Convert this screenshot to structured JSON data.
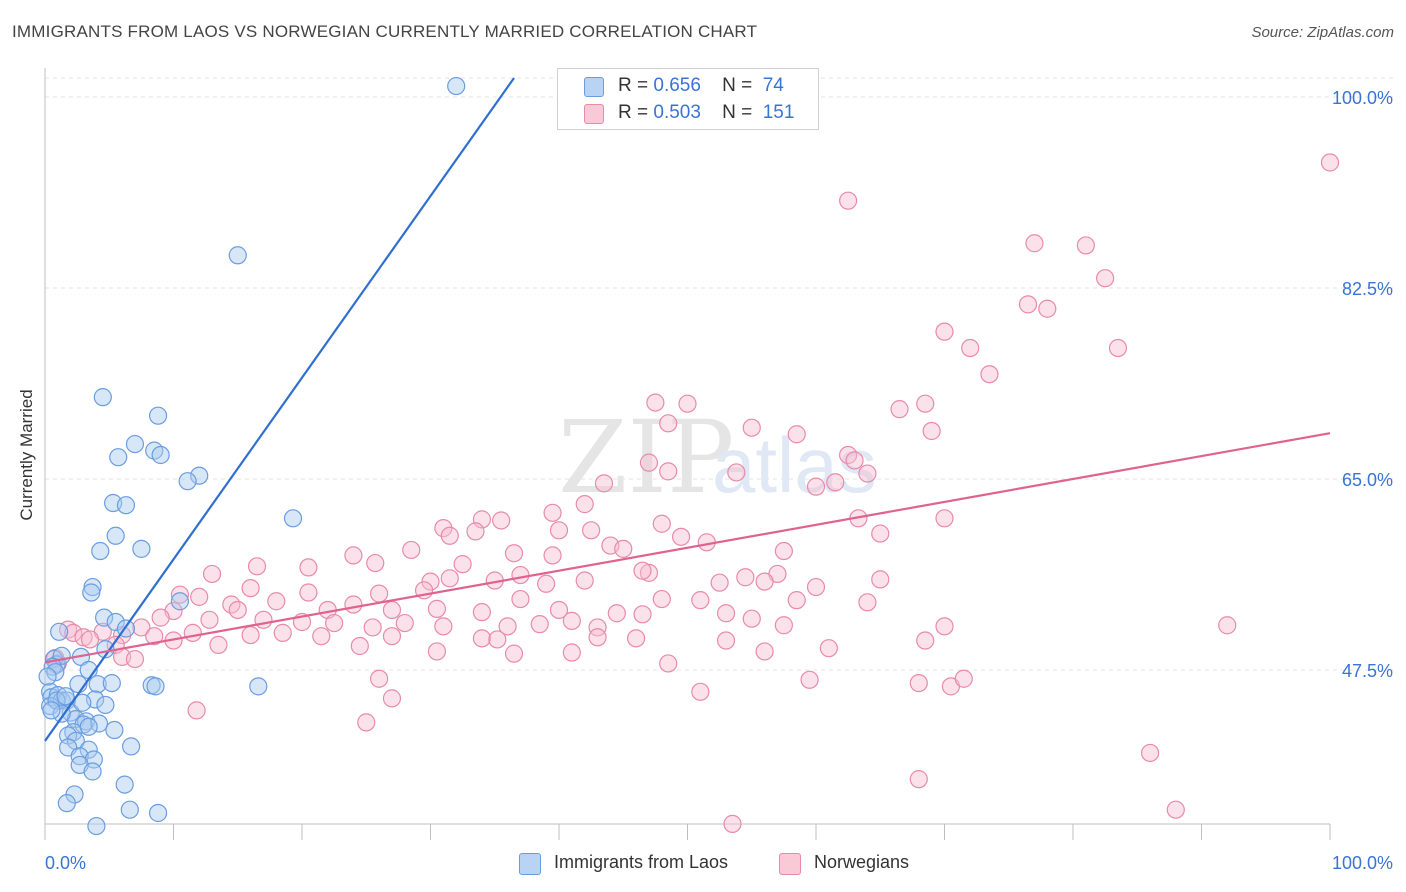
{
  "title": "IMMIGRANTS FROM LAOS VS NORWEGIAN CURRENTLY MARRIED CORRELATION CHART",
  "source": "Source: ZipAtlas.com",
  "watermark": {
    "zip": "ZIP",
    "atlas": "atlas"
  },
  "colors": {
    "blue_fill": "#a9c9f0",
    "blue_stroke": "#6a9de0",
    "blue_line": "#2f6fcf",
    "pink_fill": "#f7bdd0",
    "pink_stroke": "#e98aab",
    "pink_line": "#e0628f",
    "tick_label": "#3a73d6",
    "grid": "#e3e3e3"
  },
  "legend": {
    "rows": [
      {
        "r_label": "R =",
        "r_value": "0.656",
        "n_label": "N =",
        "n_value": "74"
      },
      {
        "r_label": "R =",
        "r_value": "0.503",
        "n_label": "N =",
        "n_value": "151"
      }
    ]
  },
  "bottom_legend": {
    "series1": "Immigrants from Laos",
    "series2": "Norwegians"
  },
  "chart_data": {
    "type": "scatter",
    "title": "IMMIGRANTS FROM LAOS VS NORWEGIAN CURRENTLY MARRIED CORRELATION CHART",
    "xlabel": "",
    "ylabel": "Currently Married",
    "xlim": [
      0,
      100
    ],
    "ylim": [
      32.5,
      102
    ],
    "x_tick_labels": [
      "0.0%",
      "100.0%"
    ],
    "y_ticks": [
      47.5,
      65.0,
      82.5,
      100.0
    ],
    "y_tick_labels": [
      "47.5%",
      "65.0%",
      "82.5%",
      "100.0%"
    ],
    "grid": true,
    "series": [
      {
        "name": "Immigrants from Laos",
        "r": 0.656,
        "n": 74,
        "trend": {
          "x0": 0,
          "y0": 41.0,
          "x1": 36.5,
          "y1": 102.0
        },
        "points": [
          [
            32.0,
            101.0
          ],
          [
            15.0,
            85.5
          ],
          [
            4.5,
            72.5
          ],
          [
            8.8,
            70.8
          ],
          [
            7.0,
            68.2
          ],
          [
            8.5,
            67.6
          ],
          [
            5.7,
            67.0
          ],
          [
            9.0,
            67.2
          ],
          [
            12.0,
            65.3
          ],
          [
            11.1,
            64.8
          ],
          [
            19.3,
            61.4
          ],
          [
            5.3,
            62.8
          ],
          [
            6.3,
            62.6
          ],
          [
            5.5,
            59.8
          ],
          [
            7.5,
            58.6
          ],
          [
            4.3,
            58.4
          ],
          [
            3.7,
            55.1
          ],
          [
            3.6,
            54.6
          ],
          [
            10.5,
            53.8
          ],
          [
            4.6,
            52.3
          ],
          [
            5.5,
            51.9
          ],
          [
            6.3,
            51.3
          ],
          [
            1.1,
            51.0
          ],
          [
            4.7,
            49.4
          ],
          [
            0.7,
            48.5
          ],
          [
            0.9,
            48.0
          ],
          [
            1.3,
            48.8
          ],
          [
            2.8,
            48.7
          ],
          [
            0.6,
            47.8
          ],
          [
            0.8,
            47.3
          ],
          [
            3.4,
            47.5
          ],
          [
            4.1,
            46.2
          ],
          [
            5.2,
            46.3
          ],
          [
            8.3,
            46.1
          ],
          [
            8.6,
            46.0
          ],
          [
            16.6,
            46.0
          ],
          [
            2.6,
            46.2
          ],
          [
            0.4,
            45.5
          ],
          [
            0.5,
            45.0
          ],
          [
            1.0,
            45.2
          ],
          [
            1.3,
            44.7
          ],
          [
            1.7,
            44.7
          ],
          [
            0.4,
            44.2
          ],
          [
            0.9,
            44.7
          ],
          [
            3.9,
            44.8
          ],
          [
            4.7,
            44.3
          ],
          [
            2.0,
            43.6
          ],
          [
            2.4,
            43.0
          ],
          [
            3.2,
            42.8
          ],
          [
            4.2,
            42.6
          ],
          [
            1.3,
            43.5
          ],
          [
            3.0,
            42.5
          ],
          [
            3.4,
            42.3
          ],
          [
            2.2,
            41.8
          ],
          [
            5.4,
            42.0
          ],
          [
            1.8,
            41.5
          ],
          [
            2.4,
            41.0
          ],
          [
            1.8,
            40.4
          ],
          [
            3.4,
            40.2
          ],
          [
            6.7,
            40.5
          ],
          [
            2.7,
            39.6
          ],
          [
            3.8,
            39.3
          ],
          [
            2.7,
            38.8
          ],
          [
            3.7,
            38.2
          ],
          [
            6.2,
            37.0
          ],
          [
            2.3,
            36.1
          ],
          [
            1.7,
            35.3
          ],
          [
            6.6,
            34.7
          ],
          [
            8.8,
            34.4
          ],
          [
            4.0,
            33.2
          ],
          [
            0.5,
            43.8
          ],
          [
            1.6,
            45.1
          ],
          [
            2.9,
            44.5
          ],
          [
            0.2,
            46.9
          ]
        ]
      },
      {
        "name": "Norwegians",
        "r": 0.503,
        "n": 151,
        "trend": {
          "x0": 0,
          "y0": 48.2,
          "x1": 100,
          "y1": 69.2
        },
        "points": [
          [
            100.0,
            94.0
          ],
          [
            62.5,
            90.5
          ],
          [
            77.0,
            86.6
          ],
          [
            81.0,
            86.4
          ],
          [
            82.5,
            83.4
          ],
          [
            76.5,
            81.0
          ],
          [
            78.0,
            80.6
          ],
          [
            70.0,
            78.5
          ],
          [
            83.5,
            77.0
          ],
          [
            72.0,
            77.0
          ],
          [
            73.5,
            74.6
          ],
          [
            47.5,
            72.0
          ],
          [
            50.0,
            71.9
          ],
          [
            68.5,
            71.9
          ],
          [
            66.5,
            71.4
          ],
          [
            48.5,
            70.1
          ],
          [
            55.0,
            69.7
          ],
          [
            69.0,
            69.4
          ],
          [
            58.5,
            69.1
          ],
          [
            62.5,
            67.2
          ],
          [
            47.0,
            66.5
          ],
          [
            63.0,
            66.7
          ],
          [
            48.5,
            65.7
          ],
          [
            53.8,
            65.6
          ],
          [
            64.0,
            65.5
          ],
          [
            60.0,
            64.3
          ],
          [
            61.5,
            64.7
          ],
          [
            43.5,
            64.6
          ],
          [
            42.0,
            62.7
          ],
          [
            39.5,
            61.9
          ],
          [
            40.0,
            60.3
          ],
          [
            48.0,
            60.9
          ],
          [
            70.0,
            61.4
          ],
          [
            63.3,
            61.4
          ],
          [
            34.0,
            61.3
          ],
          [
            35.5,
            61.2
          ],
          [
            31.0,
            60.5
          ],
          [
            42.5,
            60.3
          ],
          [
            33.5,
            60.2
          ],
          [
            31.5,
            59.8
          ],
          [
            65.0,
            60.0
          ],
          [
            49.5,
            59.7
          ],
          [
            44.0,
            58.9
          ],
          [
            51.5,
            59.2
          ],
          [
            28.5,
            58.5
          ],
          [
            45.0,
            58.6
          ],
          [
            36.5,
            58.2
          ],
          [
            57.5,
            58.4
          ],
          [
            24.0,
            58.0
          ],
          [
            39.5,
            58.0
          ],
          [
            32.5,
            57.2
          ],
          [
            16.5,
            57.0
          ],
          [
            20.5,
            56.9
          ],
          [
            13.0,
            56.3
          ],
          [
            25.7,
            57.3
          ],
          [
            47.0,
            56.4
          ],
          [
            46.5,
            56.6
          ],
          [
            57.0,
            56.3
          ],
          [
            54.5,
            56.0
          ],
          [
            37.0,
            56.2
          ],
          [
            31.5,
            55.9
          ],
          [
            30.0,
            55.6
          ],
          [
            39.0,
            55.4
          ],
          [
            35.0,
            55.7
          ],
          [
            42.0,
            55.7
          ],
          [
            65.0,
            55.8
          ],
          [
            52.5,
            55.5
          ],
          [
            56.0,
            55.6
          ],
          [
            60.0,
            55.1
          ],
          [
            29.5,
            54.8
          ],
          [
            16.0,
            55.0
          ],
          [
            20.5,
            54.6
          ],
          [
            10.5,
            54.4
          ],
          [
            12.0,
            54.2
          ],
          [
            26.0,
            54.5
          ],
          [
            37.0,
            54.0
          ],
          [
            48.0,
            54.0
          ],
          [
            51.0,
            53.9
          ],
          [
            58.5,
            53.9
          ],
          [
            64.0,
            53.7
          ],
          [
            18.0,
            53.8
          ],
          [
            14.5,
            53.5
          ],
          [
            24.0,
            53.5
          ],
          [
            15.0,
            53.0
          ],
          [
            10.0,
            52.9
          ],
          [
            22.0,
            53.0
          ],
          [
            27.0,
            53.0
          ],
          [
            30.5,
            53.1
          ],
          [
            40.0,
            53.0
          ],
          [
            44.5,
            52.7
          ],
          [
            46.5,
            52.6
          ],
          [
            34.0,
            52.8
          ],
          [
            41.0,
            52.0
          ],
          [
            53.0,
            52.7
          ],
          [
            55.0,
            52.2
          ],
          [
            9.0,
            52.3
          ],
          [
            12.8,
            52.1
          ],
          [
            17.0,
            52.1
          ],
          [
            20.0,
            51.9
          ],
          [
            22.5,
            51.8
          ],
          [
            25.5,
            51.4
          ],
          [
            28.0,
            51.8
          ],
          [
            31.0,
            51.5
          ],
          [
            36.0,
            51.5
          ],
          [
            38.5,
            51.7
          ],
          [
            43.0,
            51.4
          ],
          [
            57.5,
            51.6
          ],
          [
            70.0,
            51.5
          ],
          [
            92.0,
            51.6
          ],
          [
            7.5,
            51.4
          ],
          [
            1.8,
            51.2
          ],
          [
            2.2,
            50.9
          ],
          [
            4.5,
            51.0
          ],
          [
            3.0,
            50.5
          ],
          [
            6.0,
            50.7
          ],
          [
            8.5,
            50.6
          ],
          [
            11.5,
            50.9
          ],
          [
            16.0,
            50.7
          ],
          [
            18.5,
            50.9
          ],
          [
            21.5,
            50.6
          ],
          [
            27.0,
            50.6
          ],
          [
            34.0,
            50.4
          ],
          [
            35.2,
            50.3
          ],
          [
            43.0,
            50.5
          ],
          [
            46.0,
            50.4
          ],
          [
            53.0,
            50.2
          ],
          [
            68.5,
            50.2
          ],
          [
            3.5,
            50.3
          ],
          [
            5.5,
            49.8
          ],
          [
            10.0,
            50.2
          ],
          [
            13.5,
            49.8
          ],
          [
            24.5,
            49.7
          ],
          [
            30.5,
            49.2
          ],
          [
            36.5,
            49.0
          ],
          [
            41.0,
            49.1
          ],
          [
            56.0,
            49.2
          ],
          [
            61.0,
            49.5
          ],
          [
            0.8,
            48.6
          ],
          [
            1.0,
            48.1
          ],
          [
            6.0,
            48.7
          ],
          [
            7.0,
            48.5
          ],
          [
            48.5,
            48.1
          ],
          [
            68.0,
            46.3
          ],
          [
            26.0,
            46.7
          ],
          [
            59.5,
            46.6
          ],
          [
            70.5,
            46.0
          ],
          [
            71.5,
            46.7
          ],
          [
            51.0,
            45.5
          ],
          [
            27.0,
            44.9
          ],
          [
            11.8,
            43.8
          ],
          [
            25.0,
            42.7
          ],
          [
            86.0,
            39.9
          ],
          [
            68.0,
            37.5
          ],
          [
            88.0,
            34.7
          ],
          [
            53.5,
            33.4
          ]
        ]
      }
    ]
  }
}
